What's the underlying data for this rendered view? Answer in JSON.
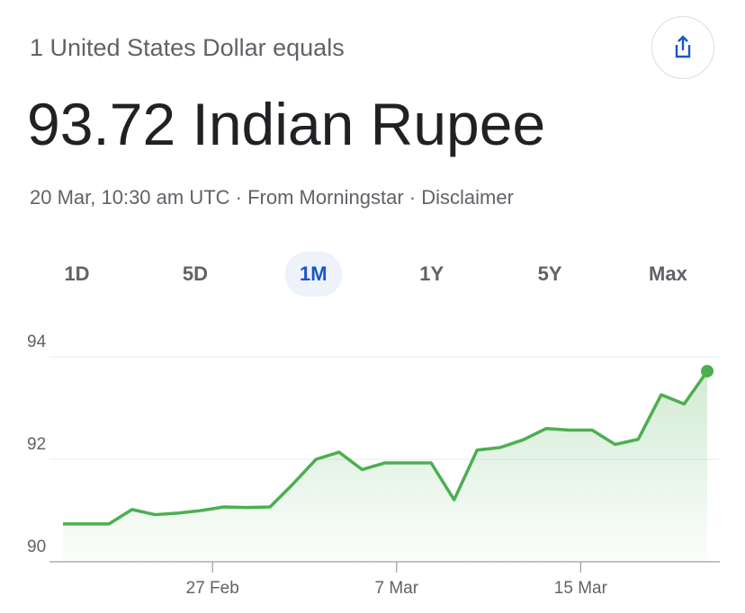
{
  "header": {
    "subtitle": "1 United States Dollar equals",
    "result": "93.72 Indian Rupee",
    "meta": "20 Mar, 10:30 am UTC · From Morningstar · Disclaimer"
  },
  "tabs": {
    "items": [
      "1D",
      "5D",
      "1M",
      "1Y",
      "5Y",
      "Max"
    ],
    "selected": 2
  },
  "chart_data": {
    "type": "line",
    "color": "#4caf50",
    "categories": [
      null,
      null,
      null,
      null,
      null,
      null,
      "27 Feb",
      null,
      null,
      null,
      null,
      null,
      null,
      null,
      "7 Mar",
      null,
      null,
      null,
      null,
      null,
      null,
      null,
      "15 Mar",
      null,
      null,
      null,
      null,
      null,
      null
    ],
    "values": [
      90.74,
      90.74,
      90.74,
      91.02,
      90.92,
      90.95,
      91.0,
      91.07,
      91.06,
      91.07,
      91.52,
      92.0,
      92.14,
      91.8,
      91.93,
      91.93,
      91.93,
      91.21,
      92.18,
      92.23,
      92.38,
      92.6,
      92.57,
      92.57,
      92.29,
      92.39,
      93.26,
      93.08,
      93.72
    ],
    "ylim": [
      90,
      94
    ],
    "yticks": [
      90,
      92,
      94
    ],
    "grid": true
  }
}
